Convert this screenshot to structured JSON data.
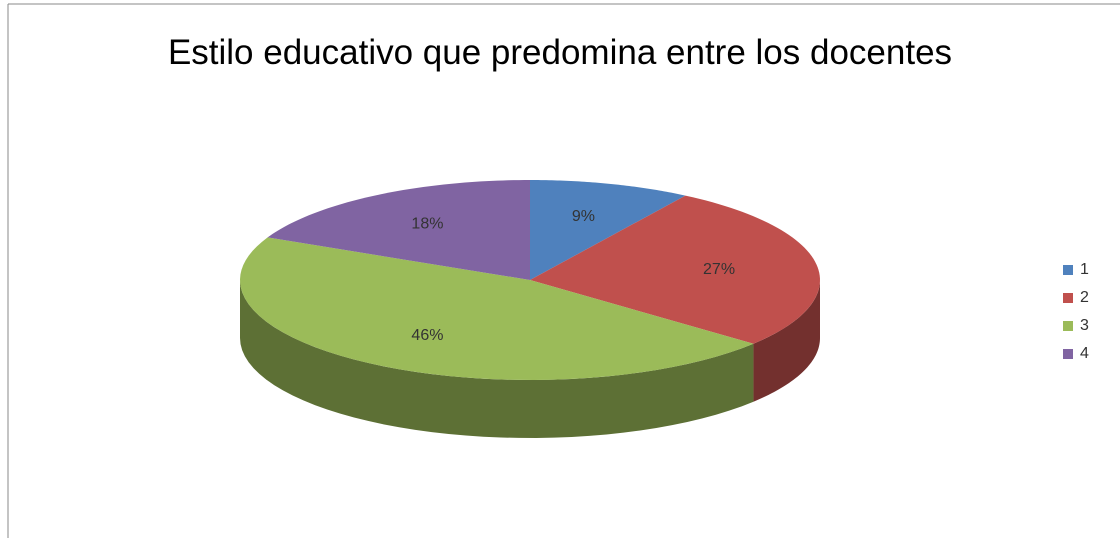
{
  "chart_data": {
    "type": "pie",
    "title": "Estilo educativo que predomina entre los docentes",
    "categories": [
      "1",
      "2",
      "3",
      "4"
    ],
    "values": [
      9,
      27,
      46,
      18
    ],
    "value_labels": [
      "9%",
      "27%",
      "46%",
      "18%"
    ],
    "colors": [
      "#4f81bd",
      "#c0504d",
      "#9bbb59",
      "#8064a2"
    ],
    "legend": "right"
  }
}
